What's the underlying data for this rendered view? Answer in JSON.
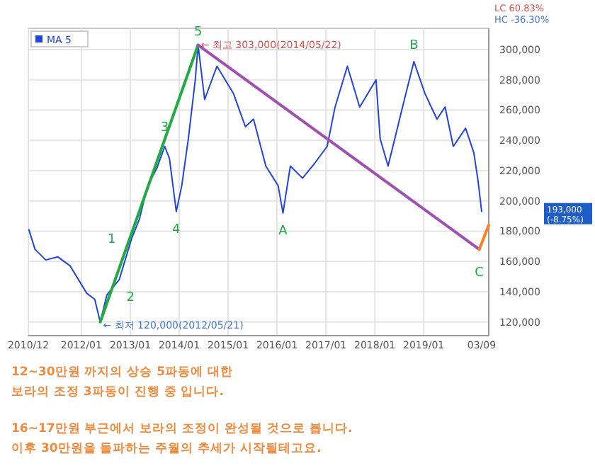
{
  "chart_data": {
    "type": "line",
    "xlim": [
      "2010-12-01",
      "2020-05-01"
    ],
    "xticks": [
      {
        "value": "2010-12-01",
        "label": "2010/12"
      },
      {
        "value": "2012-01-01",
        "label": "2012/01"
      },
      {
        "value": "2013-01-01",
        "label": "2013/01"
      },
      {
        "value": "2014-01-01",
        "label": "2014/01"
      },
      {
        "value": "2015-01-01",
        "label": "2015/01"
      },
      {
        "value": "2016-01-01",
        "label": "2016/01"
      },
      {
        "value": "2017-01-01",
        "label": "2017/01"
      },
      {
        "value": "2018-01-01",
        "label": "2018/01"
      },
      {
        "value": "2019-01-01",
        "label": "2019/01"
      },
      {
        "value": "2020-03-09",
        "label": "03/09"
      }
    ],
    "ylim": [
      111000,
      314000
    ],
    "yticks": [
      {
        "value": 120000,
        "label": "120,000"
      },
      {
        "value": 140000,
        "label": "140,000"
      },
      {
        "value": 160000,
        "label": "160,000"
      },
      {
        "value": 180000,
        "label": "180,000"
      },
      {
        "value": 200000,
        "label": "200,000"
      },
      {
        "value": 220000,
        "label": "220,000"
      },
      {
        "value": 240000,
        "label": "240,000"
      },
      {
        "value": 260000,
        "label": "260,000"
      },
      {
        "value": 280000,
        "label": "280,000"
      },
      {
        "value": 300000,
        "label": "300,000"
      }
    ],
    "grid": true,
    "legend": "top left",
    "series": [
      {
        "name": "MA 5",
        "color": "#2244dd",
        "x": [
          "2010-12-05",
          "2011-01-20",
          "2011-04-10",
          "2011-07-10",
          "2011-10-10",
          "2012-02-10",
          "2012-04-10",
          "2012-05-21",
          "2012-07-10",
          "2012-10-10",
          "2013-01-10",
          "2013-03-10",
          "2013-05-10",
          "2013-07-20",
          "2013-09-15",
          "2013-10-20",
          "2013-12-10",
          "2014-01-20",
          "2014-03-10",
          "2014-05-01",
          "2014-05-22",
          "2014-07-10",
          "2014-10-10",
          "2015-02-10",
          "2015-05-10",
          "2015-07-10",
          "2015-10-10",
          "2016-01-10",
          "2016-02-15",
          "2016-04-10",
          "2016-07-10",
          "2016-10-10",
          "2017-01-10",
          "2017-03-10",
          "2017-06-10",
          "2017-09-10",
          "2018-01-10",
          "2018-02-10",
          "2018-04-10",
          "2018-08-10",
          "2018-10-20",
          "2019-01-10",
          "2019-04-10",
          "2019-06-10",
          "2019-08-10",
          "2019-11-10",
          "2020-01-10",
          "2020-02-10",
          "2020-03-09"
        ],
        "values": [
          181000,
          168000,
          161000,
          163000,
          157000,
          139000,
          135000,
          120000,
          138000,
          148000,
          175000,
          188000,
          210000,
          222000,
          236000,
          228000,
          193000,
          210000,
          241000,
          280000,
          303000,
          267000,
          289000,
          271000,
          249000,
          254000,
          223000,
          210000,
          192000,
          223000,
          215000,
          225000,
          236000,
          262000,
          289000,
          262000,
          280000,
          241000,
          223000,
          267000,
          292000,
          271000,
          254000,
          262000,
          236000,
          248000,
          232000,
          214000,
          193000
        ]
      },
      {
        "color": "#22aa44",
        "x": [
          "2012-05-21",
          "2014-05-22"
        ],
        "values": [
          120000,
          303000
        ]
      },
      {
        "color": "#a050b0",
        "x": [
          "2014-05-22",
          "2020-02-20"
        ],
        "values": [
          303000,
          168000
        ]
      },
      {
        "color": "#ff8020",
        "x": [
          "2020-02-20",
          "2020-05-01"
        ],
        "values": [
          168000,
          184000
        ]
      }
    ],
    "annotations": [
      {
        "text": "1",
        "x": "2013-01-10",
        "y": 175000
      },
      {
        "text": "2",
        "x": "2012-10-10",
        "y": 148000
      },
      {
        "text": "3",
        "x": "2013-09-15",
        "y": 236000
      },
      {
        "text": "4",
        "x": "2013-12-10",
        "y": 193000
      },
      {
        "text": "5",
        "x": "2014-05-22",
        "y": 303000
      },
      {
        "text": "A",
        "x": "2016-02-15",
        "y": 192000
      },
      {
        "text": "B",
        "x": "2018-10-20",
        "y": 292000
      },
      {
        "text": "C",
        "x": "2020-02-20",
        "y": 168000
      },
      {
        "text": "← 최고 303,000(2014/05/22)",
        "x": "2014-05-22",
        "y": 303000
      },
      {
        "text": "← 최저 120,000(2012/05/21)",
        "x": "2012-05-21",
        "y": 120000
      },
      "LC 60.83%",
      "HC -36.30%",
      "193,000",
      "(-8.75%)",
      "12~30만원 까지의 상승 5파동에 대한",
      "보라의 조정 3파동이 진행 중 입니다.",
      "16~17만원 부근에서 보라의 조정이 완성될 것으로 봅니다.",
      "이후 30만원을 돌파하는 주월의 추세가 시작될테고요."
    ]
  }
}
